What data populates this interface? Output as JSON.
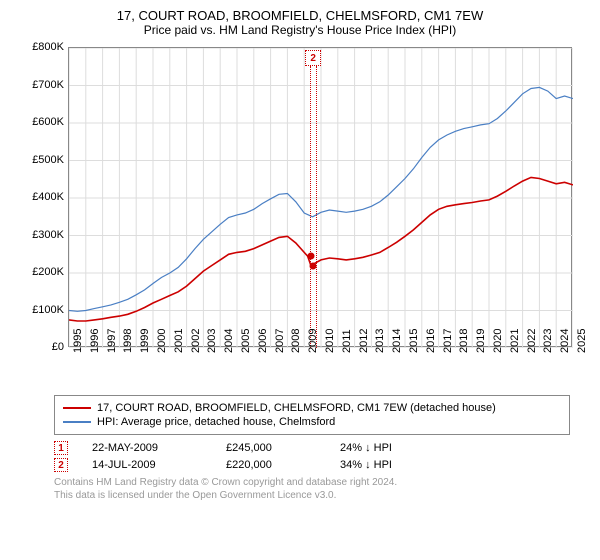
{
  "title": "17, COURT ROAD, BROOMFIELD, CHELMSFORD, CM1 7EW",
  "subtitle": "Price paid vs. HM Land Registry's House Price Index (HPI)",
  "chart": {
    "type": "line",
    "background_color": "#ffffff",
    "grid_color": "#dddddd",
    "border_color": "#888888",
    "xlim": [
      1995,
      2025
    ],
    "ylim": [
      0,
      800000
    ],
    "ytick_step": 100000,
    "yticks": [
      "£0",
      "£100K",
      "£200K",
      "£300K",
      "£400K",
      "£500K",
      "£600K",
      "£700K",
      "£800K"
    ],
    "xticks": [
      "1995",
      "1996",
      "1997",
      "1998",
      "1999",
      "2000",
      "2001",
      "2002",
      "2003",
      "2004",
      "2005",
      "2006",
      "2007",
      "2008",
      "2009",
      "2010",
      "2011",
      "2012",
      "2013",
      "2014",
      "2015",
      "2016",
      "2017",
      "2018",
      "2019",
      "2020",
      "2021",
      "2022",
      "2023",
      "2024",
      "2025"
    ],
    "series": [
      {
        "name": "property",
        "label": "17, COURT ROAD, BROOMFIELD, CHELMSFORD, CM1 7EW (detached house)",
        "color": "#cc0000",
        "width": 1.6,
        "points": [
          [
            1995,
            75000
          ],
          [
            1995.5,
            72000
          ],
          [
            1996,
            72000
          ],
          [
            1996.5,
            75000
          ],
          [
            1997,
            78000
          ],
          [
            1997.5,
            82000
          ],
          [
            1998,
            85000
          ],
          [
            1998.5,
            90000
          ],
          [
            1999,
            98000
          ],
          [
            1999.5,
            108000
          ],
          [
            2000,
            120000
          ],
          [
            2000.5,
            130000
          ],
          [
            2001,
            140000
          ],
          [
            2001.5,
            150000
          ],
          [
            2002,
            165000
          ],
          [
            2002.5,
            185000
          ],
          [
            2003,
            205000
          ],
          [
            2003.5,
            220000
          ],
          [
            2004,
            235000
          ],
          [
            2004.5,
            250000
          ],
          [
            2005,
            255000
          ],
          [
            2005.5,
            258000
          ],
          [
            2006,
            265000
          ],
          [
            2006.5,
            275000
          ],
          [
            2007,
            285000
          ],
          [
            2007.5,
            295000
          ],
          [
            2008,
            298000
          ],
          [
            2008.5,
            280000
          ],
          [
            2009,
            255000
          ],
          [
            2009.2,
            245000
          ],
          [
            2009.4,
            220000
          ],
          [
            2009.6,
            225000
          ],
          [
            2010,
            235000
          ],
          [
            2010.5,
            240000
          ],
          [
            2011,
            238000
          ],
          [
            2011.5,
            235000
          ],
          [
            2012,
            238000
          ],
          [
            2012.5,
            242000
          ],
          [
            2013,
            248000
          ],
          [
            2013.5,
            255000
          ],
          [
            2014,
            268000
          ],
          [
            2014.5,
            282000
          ],
          [
            2015,
            298000
          ],
          [
            2015.5,
            315000
          ],
          [
            2016,
            335000
          ],
          [
            2016.5,
            355000
          ],
          [
            2017,
            370000
          ],
          [
            2017.5,
            378000
          ],
          [
            2018,
            382000
          ],
          [
            2018.5,
            385000
          ],
          [
            2019,
            388000
          ],
          [
            2019.5,
            392000
          ],
          [
            2020,
            395000
          ],
          [
            2020.5,
            405000
          ],
          [
            2021,
            418000
          ],
          [
            2021.5,
            432000
          ],
          [
            2022,
            445000
          ],
          [
            2022.5,
            455000
          ],
          [
            2023,
            452000
          ],
          [
            2023.5,
            445000
          ],
          [
            2024,
            438000
          ],
          [
            2024.5,
            442000
          ],
          [
            2025,
            435000
          ]
        ]
      },
      {
        "name": "hpi",
        "label": "HPI: Average price, detached house, Chelmsford",
        "color": "#4a7fc4",
        "width": 1.2,
        "points": [
          [
            1995,
            100000
          ],
          [
            1995.5,
            98000
          ],
          [
            1996,
            100000
          ],
          [
            1996.5,
            105000
          ],
          [
            1997,
            110000
          ],
          [
            1997.5,
            115000
          ],
          [
            1998,
            122000
          ],
          [
            1998.5,
            130000
          ],
          [
            1999,
            142000
          ],
          [
            1999.5,
            155000
          ],
          [
            2000,
            172000
          ],
          [
            2000.5,
            188000
          ],
          [
            2001,
            200000
          ],
          [
            2001.5,
            215000
          ],
          [
            2002,
            238000
          ],
          [
            2002.5,
            265000
          ],
          [
            2003,
            290000
          ],
          [
            2003.5,
            310000
          ],
          [
            2004,
            330000
          ],
          [
            2004.5,
            348000
          ],
          [
            2005,
            355000
          ],
          [
            2005.5,
            360000
          ],
          [
            2006,
            370000
          ],
          [
            2006.5,
            385000
          ],
          [
            2007,
            398000
          ],
          [
            2007.5,
            410000
          ],
          [
            2008,
            412000
          ],
          [
            2008.5,
            390000
          ],
          [
            2009,
            360000
          ],
          [
            2009.5,
            350000
          ],
          [
            2010,
            362000
          ],
          [
            2010.5,
            368000
          ],
          [
            2011,
            365000
          ],
          [
            2011.5,
            362000
          ],
          [
            2012,
            365000
          ],
          [
            2012.5,
            370000
          ],
          [
            2013,
            378000
          ],
          [
            2013.5,
            390000
          ],
          [
            2014,
            408000
          ],
          [
            2014.5,
            430000
          ],
          [
            2015,
            452000
          ],
          [
            2015.5,
            478000
          ],
          [
            2016,
            508000
          ],
          [
            2016.5,
            535000
          ],
          [
            2017,
            555000
          ],
          [
            2017.5,
            568000
          ],
          [
            2018,
            578000
          ],
          [
            2018.5,
            585000
          ],
          [
            2019,
            590000
          ],
          [
            2019.5,
            595000
          ],
          [
            2020,
            598000
          ],
          [
            2020.5,
            612000
          ],
          [
            2021,
            632000
          ],
          [
            2021.5,
            655000
          ],
          [
            2022,
            678000
          ],
          [
            2022.5,
            692000
          ],
          [
            2023,
            695000
          ],
          [
            2023.5,
            685000
          ],
          [
            2024,
            665000
          ],
          [
            2024.5,
            672000
          ],
          [
            2025,
            665000
          ]
        ]
      }
    ],
    "sales": [
      {
        "id": "1",
        "date": "22-MAY-2009",
        "x": 2009.39,
        "price": "£245,000",
        "price_num": 245000,
        "vs_hpi": "24% ↓ HPI",
        "color": "#cc0000"
      },
      {
        "id": "2",
        "date": "14-JUL-2009",
        "x": 2009.53,
        "price": "£220,000",
        "price_num": 220000,
        "vs_hpi": "34% ↓ HPI",
        "color": "#cc0000"
      }
    ],
    "annotation_top_marker": {
      "id": "2",
      "x": 2009.53,
      "color": "#cc0000"
    }
  },
  "attribution": {
    "line1": "Contains HM Land Registry data © Crown copyright and database right 2024.",
    "line2": "This data is licensed under the Open Government Licence v3.0."
  }
}
